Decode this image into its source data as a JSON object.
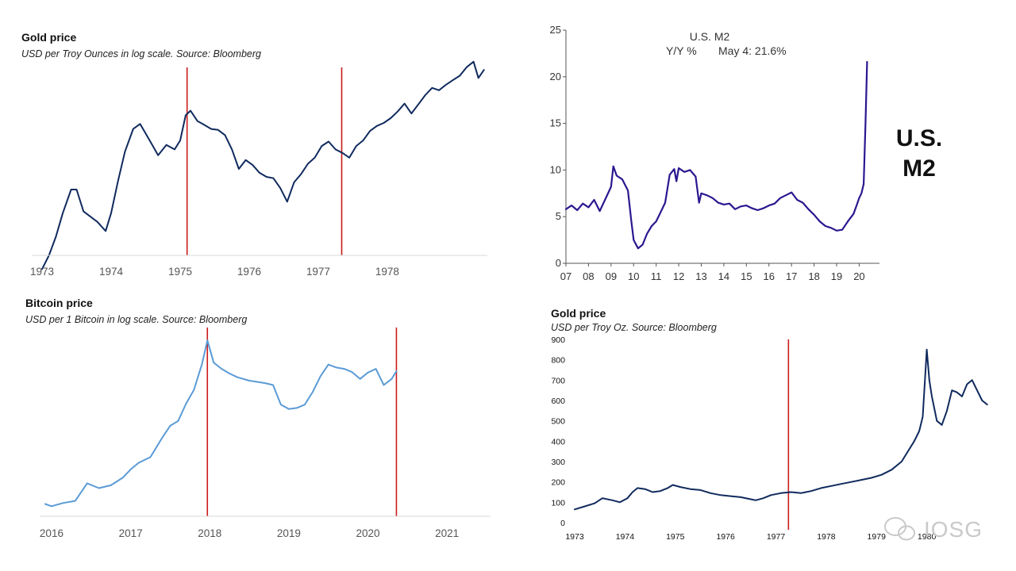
{
  "chart_data": [
    {
      "id": "gold_log",
      "type": "line",
      "title": "Gold price",
      "subtitle": "USD per Troy Ounces in log scale. Source: Bloomberg",
      "x_ticks": [
        "1973",
        "1974",
        "1975",
        "1976",
        "1977",
        "1978"
      ],
      "xlim": [
        1972.85,
        1979.45
      ],
      "ylim": [
        75,
        230
      ],
      "vlines": [
        1975.1,
        1977.34
      ],
      "series": [
        {
          "name": "Gold",
          "color": "#102a5e",
          "x": [
            1973.0,
            1973.1,
            1973.2,
            1973.3,
            1973.42,
            1973.5,
            1973.6,
            1973.8,
            1973.92,
            1974.0,
            1974.1,
            1974.2,
            1974.32,
            1974.42,
            1974.55,
            1974.68,
            1974.8,
            1974.92,
            1975.0,
            1975.08,
            1975.15,
            1975.25,
            1975.35,
            1975.45,
            1975.55,
            1975.65,
            1975.75,
            1975.85,
            1975.95,
            1976.05,
            1976.15,
            1976.25,
            1976.35,
            1976.45,
            1976.55,
            1976.65,
            1976.75,
            1976.85,
            1976.95,
            1977.05,
            1977.15,
            1977.25,
            1977.35,
            1977.45,
            1977.55,
            1977.65,
            1977.75,
            1977.85,
            1977.95,
            1978.05,
            1978.15,
            1978.25,
            1978.35,
            1978.45,
            1978.55,
            1978.65,
            1978.75,
            1978.85,
            1978.95,
            1979.05,
            1979.15,
            1979.25,
            1979.32,
            1979.4
          ],
          "values": [
            69,
            75,
            84,
            97,
            112,
            112,
            98,
            92,
            87,
            97,
            118,
            141,
            162,
            167,
            152,
            138,
            147,
            143,
            151,
            176,
            181,
            170,
            166,
            162,
            161,
            156,
            143,
            127,
            134,
            130,
            124,
            121,
            120,
            113,
            104,
            117,
            123,
            131,
            136,
            146,
            150,
            143,
            140,
            136,
            146,
            151,
            160,
            165,
            168,
            173,
            180,
            189,
            178,
            188,
            199,
            208,
            205,
            212,
            218,
            224,
            236,
            244,
            221,
            232
          ]
        }
      ]
    },
    {
      "id": "m2",
      "type": "line",
      "title": "U.S. M2",
      "subtitle_left": "Y/Y %",
      "subtitle_right": "May 4: 21.6%",
      "side_label_line1": "U.S.",
      "side_label_line2": "M2",
      "x_ticks": [
        "07",
        "08",
        "09",
        "10",
        "11",
        "12",
        "13",
        "14",
        "15",
        "16",
        "17",
        "18",
        "19",
        "20"
      ],
      "y_ticks": [
        "0",
        "5",
        "10",
        "15",
        "20",
        "25"
      ],
      "xlim": [
        2007,
        2020.9
      ],
      "ylim": [
        0,
        25
      ],
      "series": [
        {
          "name": "M2 Y/Y %",
          "color": "#2a1890",
          "x": [
            2007.0,
            2007.25,
            2007.5,
            2007.75,
            2008.0,
            2008.25,
            2008.5,
            2008.75,
            2009.0,
            2009.1,
            2009.25,
            2009.5,
            2009.75,
            2009.9,
            2010.0,
            2010.2,
            2010.4,
            2010.6,
            2010.8,
            2011.0,
            2011.2,
            2011.4,
            2011.6,
            2011.8,
            2011.9,
            2012.0,
            2012.25,
            2012.5,
            2012.75,
            2012.9,
            2013.0,
            2013.25,
            2013.5,
            2013.75,
            2014.0,
            2014.25,
            2014.5,
            2014.75,
            2015.0,
            2015.25,
            2015.5,
            2015.75,
            2016.0,
            2016.25,
            2016.5,
            2016.75,
            2017.0,
            2017.25,
            2017.5,
            2017.75,
            2018.0,
            2018.25,
            2018.5,
            2018.75,
            2019.0,
            2019.25,
            2019.5,
            2019.75,
            2019.9,
            2020.0,
            2020.1,
            2020.2,
            2020.28,
            2020.35
          ],
          "values": [
            5.8,
            6.2,
            5.7,
            6.4,
            6.0,
            6.8,
            5.6,
            6.9,
            8.2,
            10.4,
            9.4,
            9.0,
            7.8,
            4.5,
            2.5,
            1.6,
            2.0,
            3.2,
            4.0,
            4.5,
            5.5,
            6.5,
            9.5,
            10.1,
            8.8,
            10.2,
            9.8,
            10.0,
            9.3,
            6.5,
            7.5,
            7.3,
            7.0,
            6.5,
            6.3,
            6.4,
            5.8,
            6.1,
            6.2,
            5.9,
            5.7,
            5.9,
            6.2,
            6.4,
            7.0,
            7.3,
            7.6,
            6.8,
            6.5,
            5.8,
            5.2,
            4.5,
            4.0,
            3.8,
            3.5,
            3.6,
            4.5,
            5.3,
            6.3,
            7.0,
            7.5,
            8.5,
            15.0,
            21.6
          ]
        }
      ]
    },
    {
      "id": "btc_log",
      "type": "line",
      "title": "Bitcoin price",
      "subtitle": "USD per 1 Bitcoin in log scale. Source: Bloomberg",
      "x_ticks": [
        "2016",
        "2017",
        "2018",
        "2019",
        "2020",
        "2021"
      ],
      "xlim": [
        2015.85,
        2021.55
      ],
      "ylim": [
        300,
        20000
      ],
      "vlines": [
        2017.97,
        2020.36
      ],
      "series": [
        {
          "name": "Bitcoin",
          "color": "#5b9bd5",
          "x": [
            2015.92,
            2016.0,
            2016.15,
            2016.3,
            2016.45,
            2016.6,
            2016.75,
            2016.9,
            2017.0,
            2017.1,
            2017.25,
            2017.4,
            2017.5,
            2017.6,
            2017.7,
            2017.8,
            2017.9,
            2017.97,
            2018.05,
            2018.15,
            2018.25,
            2018.35,
            2018.5,
            2018.6,
            2018.7,
            2018.8,
            2018.9,
            2019.0,
            2019.1,
            2019.2,
            2019.3,
            2019.4,
            2019.5,
            2019.6,
            2019.7,
            2019.8,
            2019.9,
            2020.0,
            2020.1,
            2020.2,
            2020.3,
            2020.36
          ],
          "values": [
            400,
            380,
            410,
            430,
            650,
            580,
            620,
            740,
            900,
            1050,
            1200,
            1900,
            2500,
            2800,
            4200,
            5800,
            10500,
            18500,
            11000,
            9500,
            8500,
            7800,
            7200,
            7000,
            6800,
            6500,
            4100,
            3700,
            3800,
            4100,
            5500,
            8000,
            10500,
            9800,
            9500,
            8800,
            7500,
            8700,
            9500,
            6500,
            7500,
            9000
          ]
        }
      ]
    },
    {
      "id": "gold_linear",
      "type": "line",
      "title": "Gold price",
      "subtitle": "USD per Troy Oz. Source: Bloomberg",
      "x_ticks": [
        "1973",
        "1974",
        "1975",
        "1976",
        "1977",
        "1978",
        "1979",
        "1980"
      ],
      "y_ticks": [
        "0",
        "100",
        "200",
        "300",
        "400",
        "500",
        "600",
        "700",
        "800",
        "900"
      ],
      "xlim": [
        1973,
        1981.3
      ],
      "ylim": [
        0,
        900
      ],
      "vlines": [
        1977.25
      ],
      "series": [
        {
          "name": "Gold",
          "color": "#102a5e",
          "x": [
            1973.0,
            1973.2,
            1973.4,
            1973.55,
            1973.75,
            1973.9,
            1974.05,
            1974.15,
            1974.25,
            1974.4,
            1974.55,
            1974.7,
            1974.85,
            1974.95,
            1975.1,
            1975.3,
            1975.5,
            1975.7,
            1975.9,
            1976.1,
            1976.3,
            1976.5,
            1976.6,
            1976.75,
            1976.9,
            1977.1,
            1977.3,
            1977.5,
            1977.7,
            1977.9,
            1978.1,
            1978.3,
            1978.5,
            1978.7,
            1978.9,
            1979.1,
            1979.3,
            1979.5,
            1979.65,
            1979.75,
            1979.85,
            1979.92,
            1980.0,
            1980.05,
            1980.1,
            1980.2,
            1980.3,
            1980.4,
            1980.5,
            1980.6,
            1980.7,
            1980.8,
            1980.9,
            1981.0,
            1981.1,
            1981.2
          ],
          "values": [
            65,
            80,
            95,
            120,
            110,
            100,
            120,
            150,
            170,
            165,
            150,
            155,
            170,
            185,
            175,
            165,
            160,
            145,
            135,
            130,
            125,
            115,
            110,
            120,
            135,
            145,
            150,
            145,
            155,
            170,
            180,
            190,
            200,
            210,
            220,
            235,
            260,
            300,
            360,
            400,
            450,
            520,
            850,
            700,
            620,
            500,
            480,
            550,
            650,
            640,
            620,
            680,
            700,
            650,
            600,
            580
          ]
        }
      ]
    }
  ],
  "watermark": {
    "brand": "IOSG"
  }
}
